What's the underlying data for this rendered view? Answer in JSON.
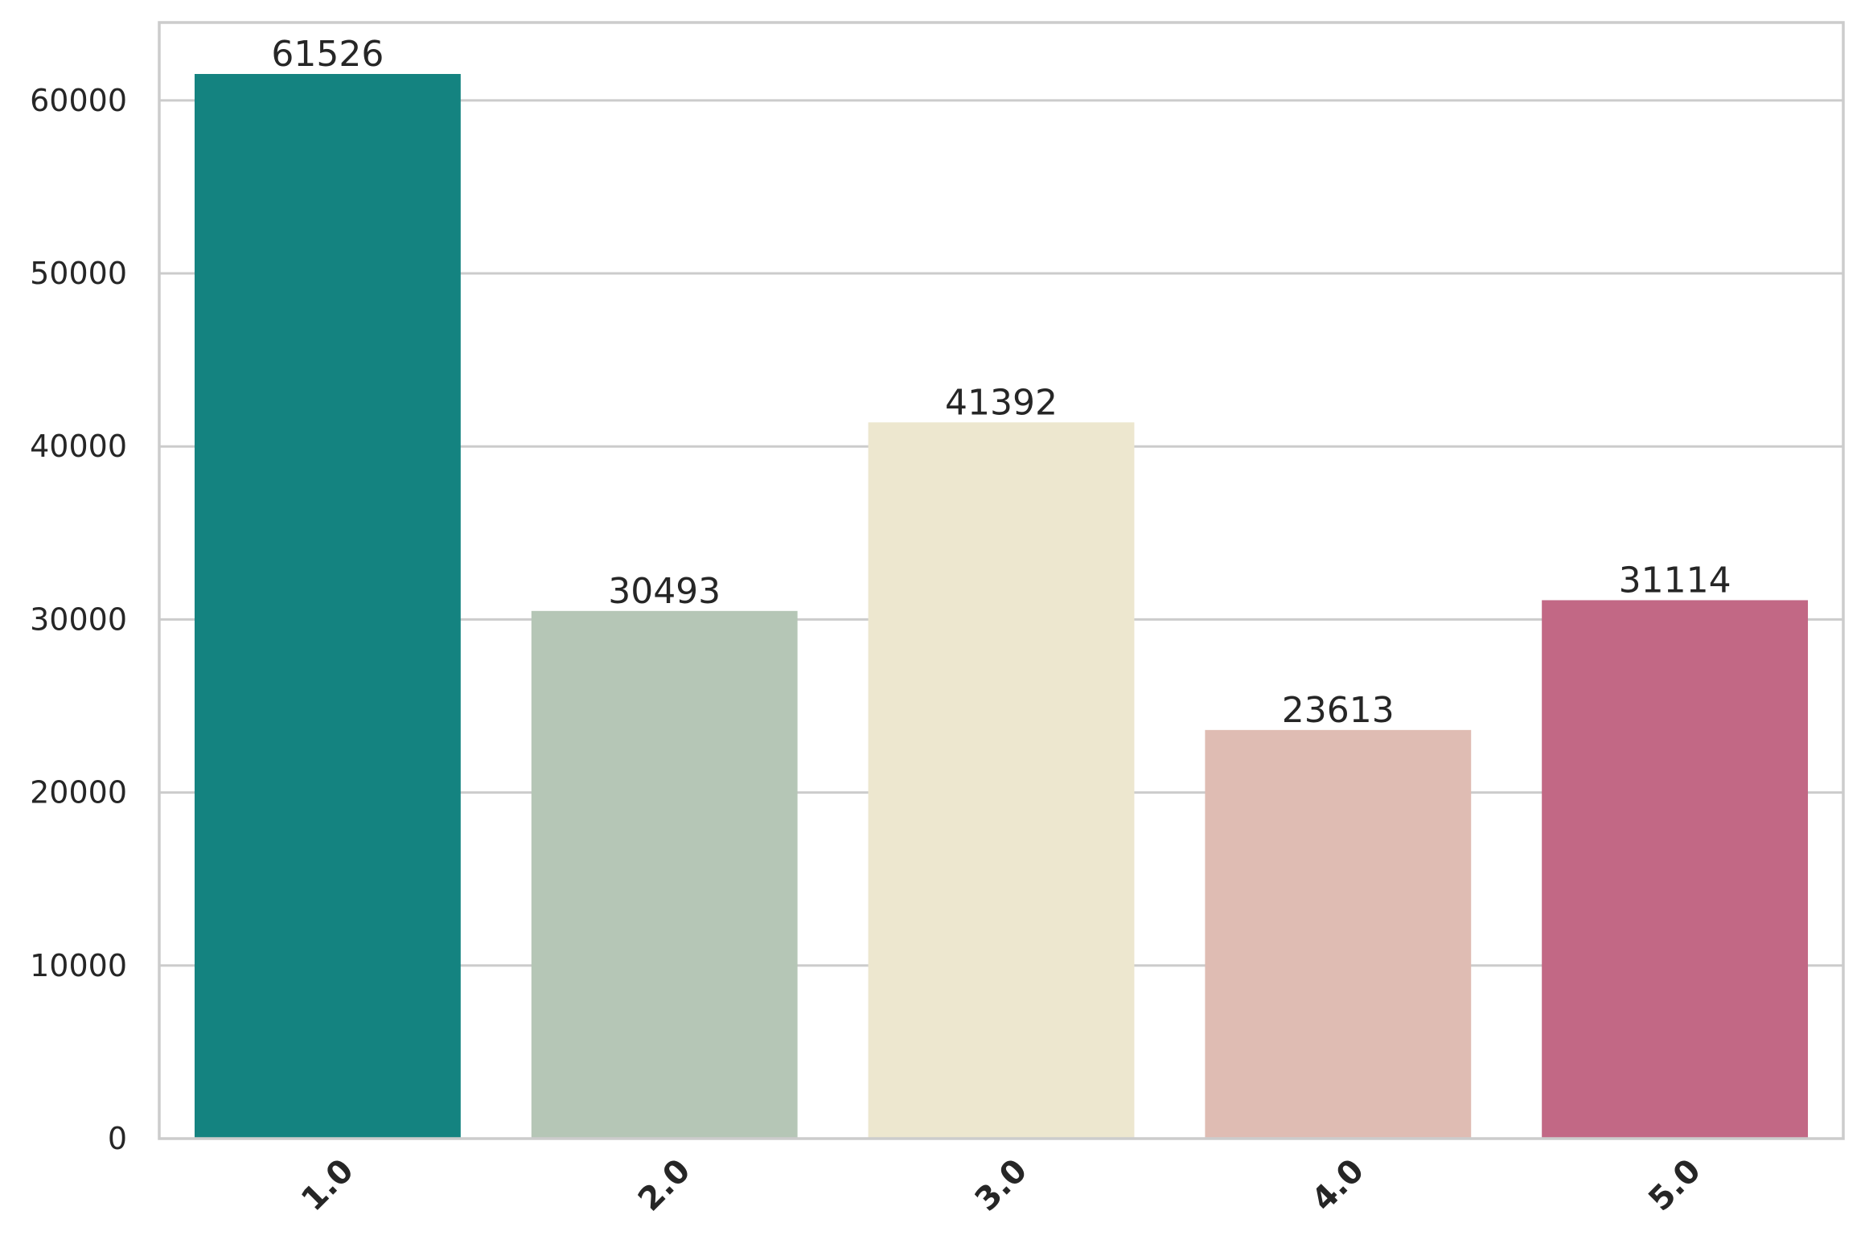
{
  "chart_data": {
    "type": "bar",
    "title": "",
    "xlabel": "",
    "ylabel": "",
    "categories": [
      "1.0",
      "2.0",
      "3.0",
      "4.0",
      "5.0"
    ],
    "values": [
      61526,
      30493,
      41392,
      23613,
      31114
    ],
    "data_labels": [
      "61526",
      "30493",
      "41392",
      "23613",
      "31114"
    ],
    "colors": [
      "#148380",
      "#b5c6b6",
      "#ede7cf",
      "#dfbcb3",
      "#c26885"
    ],
    "ylim": [
      0,
      64500
    ],
    "yticks": [
      0,
      10000,
      20000,
      30000,
      40000,
      50000,
      60000
    ],
    "ytick_labels": [
      "0",
      "10000",
      "20000",
      "30000",
      "40000",
      "50000",
      "60000"
    ],
    "grid": true,
    "legend": "none"
  }
}
